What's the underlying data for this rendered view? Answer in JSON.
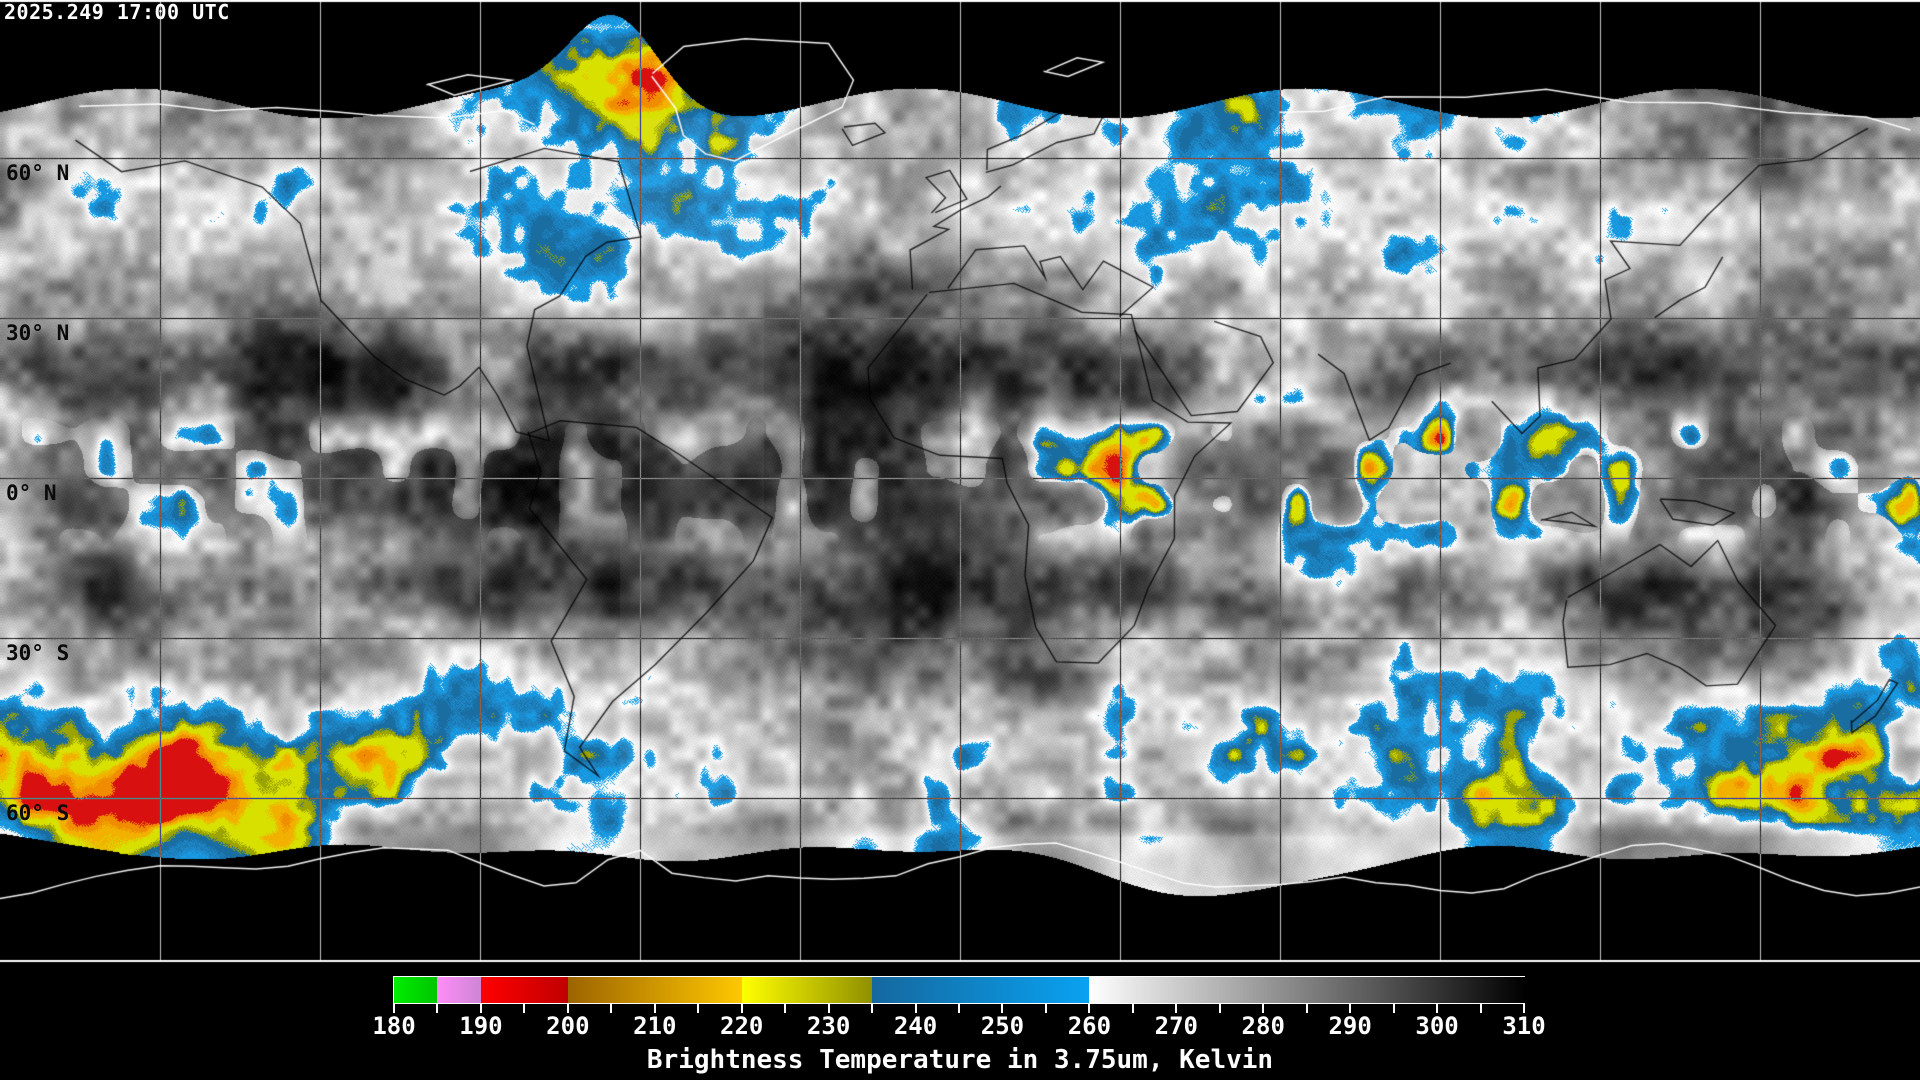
{
  "header": {
    "timestamp": "2025.249 17:00 UTC"
  },
  "map": {
    "latitude_labels": [
      {
        "id": "60n",
        "text": "60° N"
      },
      {
        "id": "30n",
        "text": "30° N"
      },
      {
        "id": "0n",
        "text": "0° N"
      },
      {
        "id": "30s",
        "text": "30° S"
      },
      {
        "id": "60s",
        "text": "60° S"
      }
    ],
    "latitude_gridlines_deg": [
      60,
      30,
      0,
      -30,
      -60
    ],
    "longitude_gridline_spacing_deg": 30,
    "palette": {
      "background": "#000000",
      "grid": "#ffffff",
      "coast_dark": "#000000",
      "coast_light": "#ffffff",
      "blue_bright": "#16a0ea",
      "blue_mid": "#1e87c8",
      "blue_deep": "#1a6da1",
      "olive": "#9aa300",
      "yellow": "#d8e000",
      "amber": "#f2b100",
      "orange": "#f08c00",
      "red": "#d81010"
    }
  },
  "legend": {
    "title": "Brightness Temperature in 3.75um, Kelvin",
    "min": 180,
    "max": 310,
    "tick_step_labeled": 10,
    "tick_step_minor": 5,
    "tick_labels": [
      "180",
      "190",
      "200",
      "210",
      "220",
      "230",
      "240",
      "250",
      "260",
      "270",
      "280",
      "290",
      "300",
      "310"
    ],
    "segments": [
      {
        "from": 180,
        "to": 185,
        "colors": [
          "#00ee00",
          "#00c400"
        ]
      },
      {
        "from": 185,
        "to": 190,
        "colors": [
          "#ff8df8",
          "#cc85d4"
        ]
      },
      {
        "from": 190,
        "to": 200,
        "colors": [
          "#ff0000",
          "#c00000"
        ]
      },
      {
        "from": 200,
        "to": 220,
        "colors": [
          "#9c6400",
          "#ffc800"
        ]
      },
      {
        "from": 220,
        "to": 235,
        "colors": [
          "#ffff00",
          "#8f8f00"
        ]
      },
      {
        "from": 235,
        "to": 260,
        "colors": [
          "#15689e",
          "#09a2f2"
        ]
      },
      {
        "from": 260,
        "to": 310,
        "colors": [
          "#ffffff",
          "#000000"
        ]
      }
    ]
  }
}
